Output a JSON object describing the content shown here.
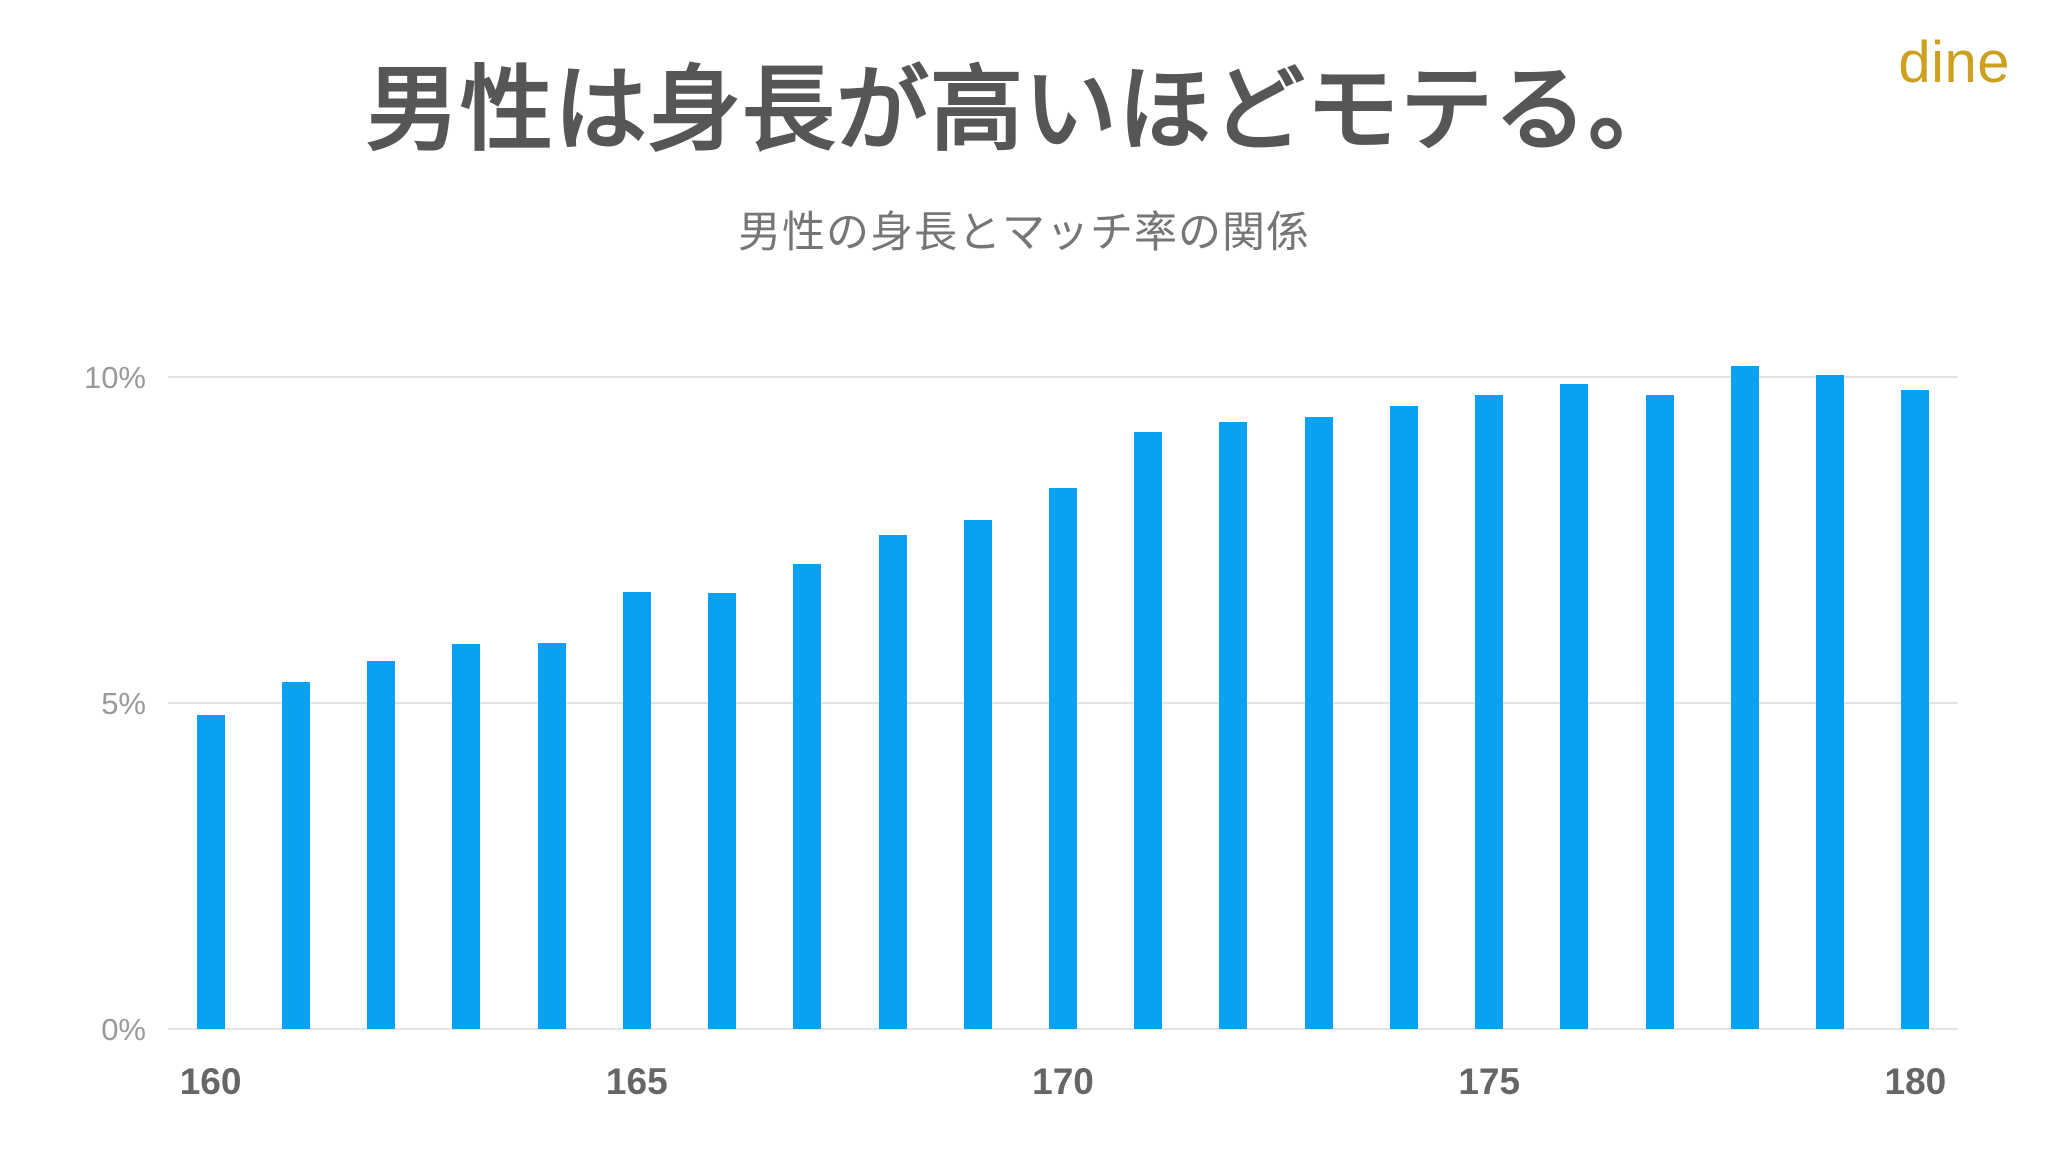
{
  "logo": {
    "text": "dine",
    "color": "#CDA11F"
  },
  "header": {
    "title": "男性は身長が高いほどモテる。",
    "title_color": "#565656",
    "subtitle": "男性の身長とマッチ率の関係",
    "subtitle_color": "#767676"
  },
  "chart_data": {
    "type": "bar",
    "title": "男性は身長が高いほどモテる。",
    "subtitle": "男性の身長とマッチ率の関係",
    "xlabel": "",
    "ylabel": "",
    "categories": [
      160,
      161,
      162,
      163,
      164,
      165,
      166,
      167,
      168,
      169,
      170,
      171,
      172,
      173,
      174,
      175,
      176,
      177,
      178,
      179,
      180
    ],
    "values": [
      4.82,
      5.32,
      5.65,
      5.91,
      5.92,
      6.71,
      6.68,
      7.13,
      7.58,
      7.8,
      8.29,
      9.16,
      9.31,
      9.39,
      9.56,
      9.72,
      9.89,
      9.73,
      10.17,
      10.03,
      9.8
    ],
    "unit": "%",
    "xticks": [
      160,
      165,
      170,
      175,
      180
    ],
    "yticks": [
      {
        "value": 0,
        "label": "0%"
      },
      {
        "value": 5,
        "label": "5%"
      },
      {
        "value": 10,
        "label": "10%"
      }
    ],
    "ylim": [
      0,
      10.3
    ],
    "grid": "horizontal",
    "legend": "none",
    "bar_color": "#0AA1F2",
    "grid_color": "#E4E4E4",
    "ytick_color": "#9A9A9A",
    "xtick_color": "#666666"
  }
}
